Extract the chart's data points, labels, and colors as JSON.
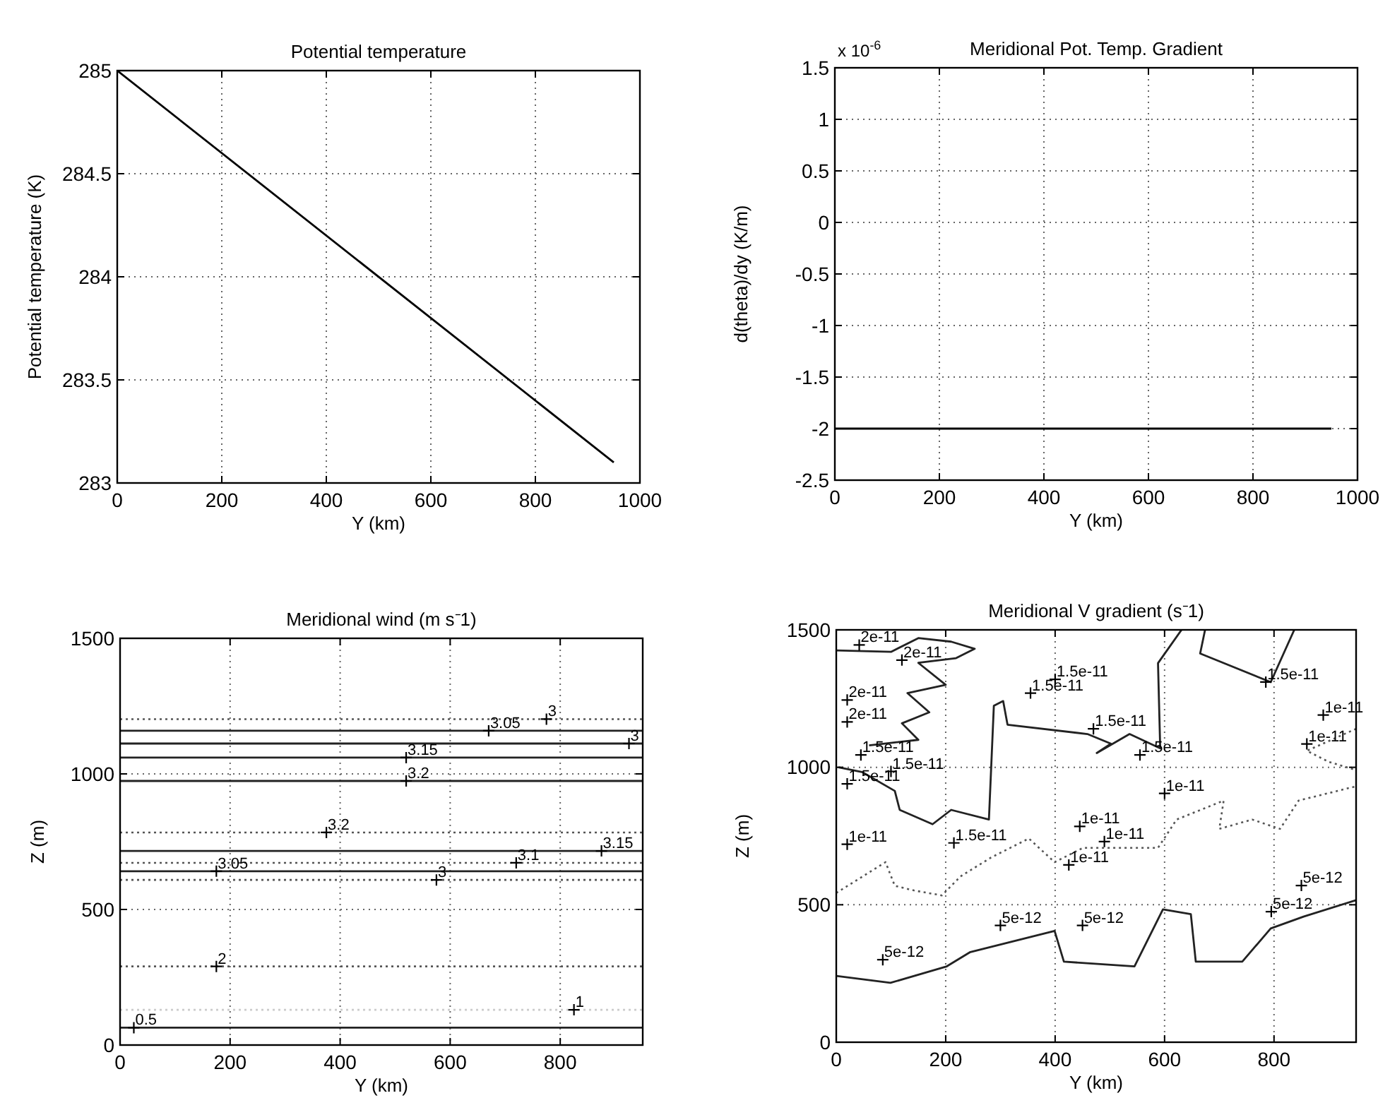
{
  "chart_data": [
    {
      "type": "line",
      "title": "Potential temperature",
      "xlabel": "Y (km)",
      "ylabel": "Potential temperature (K)",
      "xlim": [
        0,
        1000
      ],
      "xticks": [
        0,
        200,
        400,
        600,
        800,
        1000
      ],
      "ylim": [
        283,
        285
      ],
      "yticks": [
        283,
        283.5,
        284,
        284.5,
        285
      ],
      "grid": true,
      "series": [
        {
          "color": "#000000",
          "x": [
            0,
            950
          ],
          "values": [
            285,
            283.1
          ]
        }
      ]
    },
    {
      "type": "line",
      "title": "Meridional Pot. Temp. Gradient",
      "xlabel": "Y (km)",
      "ylabel": "d(theta)/dy (K/m)",
      "xlim": [
        0,
        1000
      ],
      "xticks": [
        0,
        200,
        400,
        600,
        800,
        1000
      ],
      "ylim": [
        -2.5,
        1.5
      ],
      "yticks": [
        -2.5,
        -2,
        -1.5,
        -1,
        -0.5,
        0,
        0.5,
        1,
        1.5
      ],
      "grid": true,
      "annotations": [
        "x 10$^{-6}$"
      ],
      "series": [
        {
          "color": "#000000",
          "x": [
            0,
            950
          ],
          "values": [
            -2,
            -2
          ]
        }
      ]
    },
    {
      "type": "line",
      "title": "Meridional wind (m s⁻1)",
      "xlabel": "Y (km)",
      "ylabel": "Z (m)",
      "xlim": [
        0,
        950
      ],
      "xticks": [
        0,
        200,
        400,
        600,
        800
      ],
      "ylim": [
        0,
        1500
      ],
      "yticks": [
        0,
        500,
        1000,
        1500
      ],
      "grid": true,
      "series": [
        {
          "color": "#555555",
          "line_style": "dotted",
          "x": [
            0,
            950
          ],
          "values": [
            1202,
            1202
          ]
        },
        {
          "color": "#222222",
          "x": [
            0,
            950
          ],
          "values": [
            1159,
            1159
          ]
        },
        {
          "color": "#222222",
          "x": [
            0,
            950
          ],
          "values": [
            1112,
            1112
          ]
        },
        {
          "color": "#222222",
          "x": [
            0,
            950
          ],
          "values": [
            1060,
            1060
          ]
        },
        {
          "color": "#222222",
          "x": [
            0,
            950
          ],
          "values": [
            974,
            974
          ]
        },
        {
          "color": "#555555",
          "line_style": "dotted",
          "x": [
            0,
            950
          ],
          "values": [
            784,
            784
          ]
        },
        {
          "color": "#222222",
          "x": [
            0,
            950
          ],
          "values": [
            716,
            716
          ]
        },
        {
          "color": "#555555",
          "line_style": "dotted",
          "x": [
            0,
            950
          ],
          "values": [
            672,
            672
          ]
        },
        {
          "color": "#222222",
          "x": [
            0,
            950
          ],
          "values": [
            641,
            641
          ]
        },
        {
          "color": "#555555",
          "line_style": "dotted",
          "x": [
            0,
            950
          ],
          "values": [
            609,
            609
          ]
        },
        {
          "color": "#555555",
          "line_style": "dotted",
          "x": [
            0,
            950
          ],
          "values": [
            290,
            290
          ]
        },
        {
          "color": "#cccccc",
          "line_style": "dotted",
          "x": [
            0,
            950
          ],
          "values": [
            130,
            130
          ]
        },
        {
          "color": "#222222",
          "x": [
            0,
            950
          ],
          "values": [
            64,
            64
          ]
        },
        {
          "type": "scatter",
          "marker": "cross",
          "color": "#000000",
          "x": [
            25,
            175,
            175,
            375,
            520,
            520,
            575,
            670,
            775,
            720,
            875,
            925,
            825
          ],
          "values": [
            64,
            290,
            641,
            784,
            1060,
            974,
            609,
            1159,
            1202,
            672,
            716,
            1112,
            130
          ]
        }
      ],
      "annotations": [
        {
          "text": "0.5",
          "x": 25,
          "y": 64
        },
        {
          "text": "2",
          "x": 175,
          "y": 290
        },
        {
          "text": "3.05",
          "x": 175,
          "y": 641
        },
        {
          "text": "3.2",
          "x": 375,
          "y": 784
        },
        {
          "text": "3.15",
          "x": 520,
          "y": 1060
        },
        {
          "text": "3.2",
          "x": 520,
          "y": 974
        },
        {
          "text": "3",
          "x": 575,
          "y": 609
        },
        {
          "text": "3.05",
          "x": 670,
          "y": 1159
        },
        {
          "text": "3",
          "x": 775,
          "y": 1202
        },
        {
          "text": "3.1",
          "x": 720,
          "y": 672
        },
        {
          "text": "3.15",
          "x": 875,
          "y": 716
        },
        {
          "text": "3",
          "x": 925,
          "y": 1112
        },
        {
          "text": "1",
          "x": 825,
          "y": 130
        }
      ]
    },
    {
      "type": "line",
      "title": "Meridional V gradient (s⁻1)",
      "xlabel": "Y (km)",
      "ylabel": "Z (m)",
      "xlim": [
        0,
        950
      ],
      "xticks": [
        0,
        200,
        400,
        600,
        800
      ],
      "ylim": [
        0,
        1500
      ],
      "yticks": [
        0,
        500,
        1000,
        1500
      ],
      "grid": true,
      "series": [
        {
          "color": "#222222",
          "x": [
            0,
            99,
            202,
            245,
            313,
            399,
            416,
            545,
            597,
            648,
            657,
            742,
            794,
            854,
            950
          ],
          "values": [
            241,
            216,
            276,
            328,
            362,
            405,
            293,
            276,
            483,
            466,
            293,
            293,
            414,
            457,
            517
          ]
        },
        {
          "color": "#555555",
          "line_style": "dotted",
          "x": [
            0,
            90,
            107,
            142,
            193,
            227,
            283,
            352,
            399,
            451,
            588,
            622,
            708,
            700,
            760,
            811,
            845,
            950
          ],
          "values": [
            543,
            655,
            569,
            552,
            534,
            603,
            672,
            741,
            655,
            707,
            707,
            810,
            879,
            776,
            810,
            776,
            879,
            931
          ]
        },
        {
          "color": "#222222",
          "x": [
            631,
            588,
            592,
            536,
            476,
            502,
            459,
            313,
            305,
            288,
            279,
            210,
            176,
            116,
            107,
            47,
            4
          ],
          "values": [
            1500,
            1379,
            1069,
            1121,
            1052,
            1086,
            1121,
            1155,
            1241,
            1224,
            810,
            845,
            793,
            845,
            914,
            983,
            1000
          ]
        },
        {
          "color": "#222222",
          "x": [
            0,
            100,
            150,
            210,
            253,
            219,
            150,
            200,
            130,
            170,
            120,
            150,
            60
          ],
          "values": [
            1425,
            1420,
            1470,
            1457,
            1431,
            1397,
            1380,
            1300,
            1270,
            1200,
            1160,
            1100,
            1080
          ]
        },
        {
          "color": "#222222",
          "x": [
            674,
            665,
            794,
            837
          ],
          "values": [
            1500,
            1414,
            1310,
            1500
          ]
        },
        {
          "color": "#555555",
          "line_style": "dotted",
          "x": [
            950,
            860,
            900,
            950
          ],
          "values": [
            1140,
            1060,
            1020,
            990
          ]
        },
        {
          "type": "scatter",
          "marker": "cross",
          "color": "#000000",
          "x": [
            42,
            120,
            20,
            20,
            45,
            100,
            20,
            20,
            215,
            355,
            400,
            470,
            555,
            785,
            600,
            445,
            490,
            425,
            300,
            450,
            85,
            795,
            850,
            890,
            860
          ],
          "values": [
            1445,
            1390,
            1245,
            1165,
            1045,
            985,
            940,
            720,
            725,
            1270,
            1320,
            1140,
            1045,
            1310,
            905,
            785,
            730,
            645,
            425,
            425,
            300,
            475,
            570,
            1190,
            1085
          ]
        }
      ],
      "annotations": [
        {
          "text": "2e-11",
          "x": 42,
          "y": 1445
        },
        {
          "text": "2e-11",
          "x": 120,
          "y": 1390
        },
        {
          "text": "2e-11",
          "x": 20,
          "y": 1245
        },
        {
          "text": "2e-11",
          "x": 20,
          "y": 1165
        },
        {
          "text": "1.5e-11",
          "x": 45,
          "y": 1045
        },
        {
          "text": "1.5e-11",
          "x": 100,
          "y": 985
        },
        {
          "text": "1.5e-11",
          "x": 20,
          "y": 940
        },
        {
          "text": "1e-11",
          "x": 20,
          "y": 720
        },
        {
          "text": "1.5e-11",
          "x": 215,
          "y": 725
        },
        {
          "text": "1.5e-11",
          "x": 355,
          "y": 1270
        },
        {
          "text": "1.5e-11",
          "x": 400,
          "y": 1320
        },
        {
          "text": "1.5e-11",
          "x": 470,
          "y": 1140
        },
        {
          "text": "1.5e-11",
          "x": 555,
          "y": 1045
        },
        {
          "text": "1.5e-11",
          "x": 785,
          "y": 1310
        },
        {
          "text": "1e-11",
          "x": 600,
          "y": 905
        },
        {
          "text": "1e-11",
          "x": 445,
          "y": 785
        },
        {
          "text": "1e-11",
          "x": 490,
          "y": 730
        },
        {
          "text": "1e-11",
          "x": 425,
          "y": 645
        },
        {
          "text": "5e-12",
          "x": 300,
          "y": 425
        },
        {
          "text": "5e-12",
          "x": 450,
          "y": 425
        },
        {
          "text": "5e-12",
          "x": 85,
          "y": 300
        },
        {
          "text": "5e-12",
          "x": 795,
          "y": 475
        },
        {
          "text": "5e-12",
          "x": 850,
          "y": 570
        },
        {
          "text": "1e-11",
          "x": 890,
          "y": 1190
        },
        {
          "text": "1e-11",
          "x": 860,
          "y": 1085
        }
      ]
    }
  ]
}
